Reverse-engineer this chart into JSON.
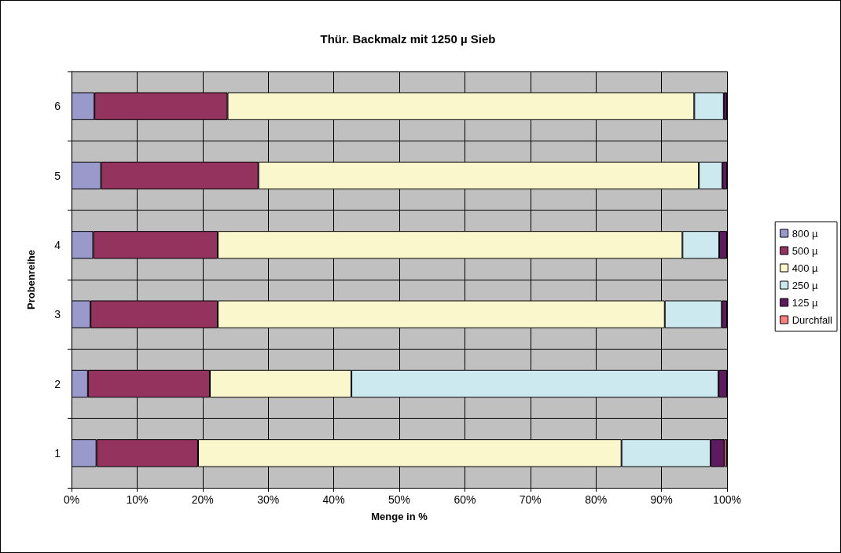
{
  "chart_data": {
    "type": "bar",
    "title": "Thür. Backmalz mit 1250 µ Sieb",
    "xlabel": "Menge in %",
    "ylabel": "Probenreihe",
    "orientation": "horizontal",
    "stacked": true,
    "grid": true,
    "legend": "right",
    "categories": [
      "6",
      "5",
      "4",
      "3",
      "2",
      "1"
    ],
    "xlim": [
      0,
      100
    ],
    "xticks": [
      {
        "value": 0,
        "label": "0%"
      },
      {
        "value": 10,
        "label": "10%"
      },
      {
        "value": 20,
        "label": "20%"
      },
      {
        "value": 30,
        "label": "30%"
      },
      {
        "value": 40,
        "label": "40%"
      },
      {
        "value": 50,
        "label": "50%"
      },
      {
        "value": 60,
        "label": "60%"
      },
      {
        "value": 70,
        "label": "70%"
      },
      {
        "value": 80,
        "label": "80%"
      },
      {
        "value": 90,
        "label": "90%"
      },
      {
        "value": 100,
        "label": "100%"
      }
    ],
    "series": [
      {
        "name": "800 µ",
        "color": "#9999cc",
        "values": [
          3.5,
          4.5,
          3.3,
          2.9,
          2.5,
          3.8
        ]
      },
      {
        "name": "500 µ",
        "color": "#93335e",
        "values": [
          20.3,
          24.0,
          19.0,
          19.4,
          18.6,
          15.5
        ]
      },
      {
        "name": "400 µ",
        "color": "#faf7cc",
        "values": [
          71.2,
          67.2,
          70.9,
          68.2,
          21.6,
          64.6
        ]
      },
      {
        "name": "250 µ",
        "color": "#cce9f0",
        "values": [
          4.5,
          3.6,
          5.6,
          8.7,
          56.0,
          13.6
        ]
      },
      {
        "name": "125 µ",
        "color": "#5e1a5e",
        "values": [
          0.5,
          0.7,
          1.2,
          0.8,
          1.3,
          2.1
        ]
      },
      {
        "name": "Durchfall",
        "color": "#ff8080",
        "values": [
          0,
          0,
          0,
          0,
          0,
          0.4
        ]
      }
    ]
  }
}
